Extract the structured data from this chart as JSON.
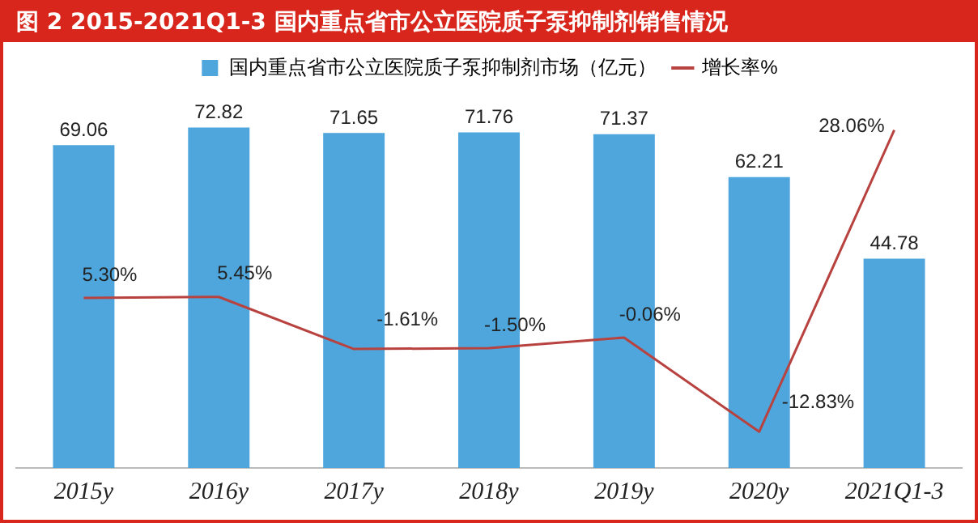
{
  "chart_data": {
    "type": "bar",
    "title": "图 2   2015-2021Q1-3 国内重点省市公立医院质子泵抑制剂销售情况",
    "categories": [
      "2015y",
      "2016y",
      "2017y",
      "2018y",
      "2019y",
      "2020y",
      "2021Q1-3"
    ],
    "series": [
      {
        "name": "国内重点省市公立医院质子泵抑制剂市场（亿元）",
        "color": "#4ea6dc",
        "values": [
          69.06,
          72.82,
          71.65,
          71.76,
          71.37,
          62.21,
          44.78
        ]
      },
      {
        "name": "增长率%",
        "type": "line",
        "axis": "y2",
        "color": "#b8423f",
        "values": [
          5.3,
          5.45,
          -1.61,
          -1.5,
          -0.06,
          -12.83,
          28.06
        ],
        "value_labels": [
          "5.30%",
          "5.45%",
          "-1.61%",
          "-1.50%",
          "-0.06%",
          "-12.83%",
          "28.06%"
        ]
      }
    ],
    "data_labels": true,
    "legend": "top",
    "grid": false,
    "marker": "none",
    "tick_labels": "x"
  }
}
